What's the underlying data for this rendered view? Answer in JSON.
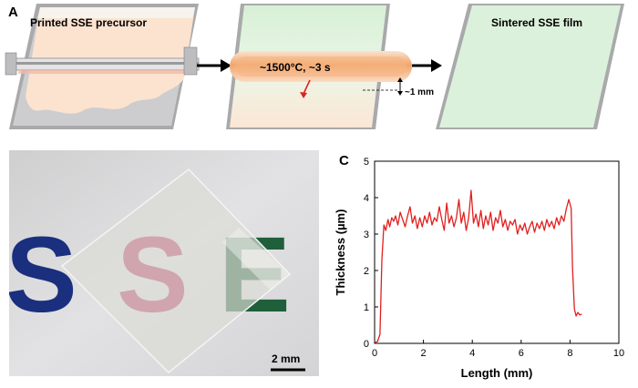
{
  "panelA": {
    "label": "A",
    "step1_caption": "Printed SSE precursor",
    "step2_caption": "~1500°C, ~3 s",
    "step2_gap": "~1 mm",
    "step3_caption": "Sintered SSE film"
  },
  "panelB": {
    "label": "B",
    "background_letters": [
      "S",
      "S",
      "E"
    ],
    "scale_bar": "2 mm"
  },
  "panelC": {
    "label": "C"
  },
  "chart_data": {
    "type": "line",
    "xlabel": "Length (mm)",
    "ylabel": "Thickness (µm)",
    "xlim": [
      0,
      10
    ],
    "ylim": [
      0,
      5
    ],
    "xticks": [
      0,
      2,
      4,
      6,
      8,
      10
    ],
    "yticks": [
      0,
      1,
      2,
      3,
      4,
      5
    ],
    "series": [
      {
        "color": "#e0201f",
        "x": [
          0,
          0.12,
          0.22,
          0.3,
          0.38,
          0.46,
          0.55,
          0.62,
          0.7,
          0.78,
          0.86,
          0.95,
          1.05,
          1.15,
          1.25,
          1.35,
          1.45,
          1.55,
          1.65,
          1.75,
          1.85,
          1.95,
          2.05,
          2.15,
          2.25,
          2.35,
          2.45,
          2.55,
          2.65,
          2.75,
          2.85,
          2.95,
          3.05,
          3.15,
          3.25,
          3.35,
          3.45,
          3.55,
          3.65,
          3.75,
          3.85,
          3.95,
          4.05,
          4.15,
          4.25,
          4.35,
          4.45,
          4.55,
          4.65,
          4.75,
          4.85,
          4.95,
          5.05,
          5.15,
          5.25,
          5.35,
          5.45,
          5.55,
          5.65,
          5.75,
          5.85,
          5.95,
          6.05,
          6.15,
          6.25,
          6.35,
          6.45,
          6.55,
          6.65,
          6.75,
          6.85,
          6.95,
          7.05,
          7.15,
          7.25,
          7.35,
          7.45,
          7.55,
          7.65,
          7.75,
          7.85,
          7.95,
          8.05,
          8.1,
          8.18,
          8.25,
          8.32,
          8.4,
          8.48
        ],
        "values": [
          0.02,
          0.05,
          0.25,
          2.3,
          3.25,
          3.1,
          3.4,
          3.2,
          3.45,
          3.35,
          3.5,
          3.25,
          3.6,
          3.4,
          3.2,
          3.5,
          3.75,
          3.3,
          3.5,
          3.15,
          3.45,
          3.2,
          3.5,
          3.3,
          3.6,
          3.25,
          3.45,
          3.35,
          3.75,
          3.4,
          3.1,
          3.85,
          3.3,
          3.5,
          3.2,
          3.45,
          3.95,
          3.3,
          3.6,
          3.1,
          3.45,
          4.2,
          3.3,
          3.55,
          3.2,
          3.65,
          3.15,
          3.5,
          3.25,
          3.6,
          3.1,
          3.45,
          3.3,
          3.65,
          3.2,
          3.4,
          3.1,
          3.35,
          3.25,
          3.4,
          3.0,
          3.25,
          3.1,
          3.3,
          3.0,
          3.2,
          3.35,
          3.05,
          3.3,
          3.15,
          3.35,
          3.1,
          3.4,
          3.2,
          3.35,
          3.15,
          3.45,
          3.25,
          3.5,
          3.35,
          3.7,
          3.95,
          3.7,
          2.1,
          0.95,
          0.75,
          0.85,
          0.78,
          0.8
        ]
      }
    ]
  }
}
